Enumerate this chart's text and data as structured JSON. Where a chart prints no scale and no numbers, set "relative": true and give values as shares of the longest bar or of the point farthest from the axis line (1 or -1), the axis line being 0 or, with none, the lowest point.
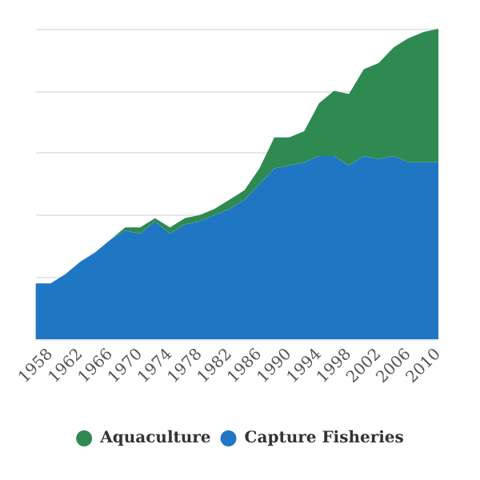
{
  "chart_data": {
    "type": "area",
    "stacked": true,
    "relative": true,
    "grid": "y",
    "legend": "bottom",
    "categories": [
      null,
      "1958",
      null,
      "1962",
      null,
      "1966",
      null,
      "1970",
      null,
      "1974",
      null,
      "1978",
      null,
      "1982",
      null,
      "1986",
      null,
      "1990",
      null,
      "1994",
      null,
      "1998",
      null,
      "2002",
      null,
      "2006",
      null,
      "2010"
    ],
    "series": [
      {
        "name": "Capture Fisheries",
        "color": "#1f77c4",
        "values": [
          0.18,
          0.18,
          0.21,
          0.25,
          0.28,
          0.32,
          0.35,
          0.34,
          0.38,
          0.34,
          0.37,
          0.38,
          0.4,
          0.42,
          0.45,
          0.5,
          0.55,
          0.56,
          0.57,
          0.59,
          0.59,
          0.56,
          0.59,
          0.58,
          0.59,
          0.57,
          0.57,
          0.57
        ]
      },
      {
        "name": "Aquaculture",
        "color": "#2e8a50",
        "values": [
          0,
          0,
          0,
          0,
          0,
          0,
          0.01,
          0.02,
          0.01,
          0.02,
          0.02,
          0.02,
          0.02,
          0.03,
          0.03,
          0.05,
          0.1,
          0.09,
          0.1,
          0.17,
          0.21,
          0.23,
          0.28,
          0.31,
          0.35,
          0.4,
          0.42,
          0.43
        ]
      }
    ]
  }
}
